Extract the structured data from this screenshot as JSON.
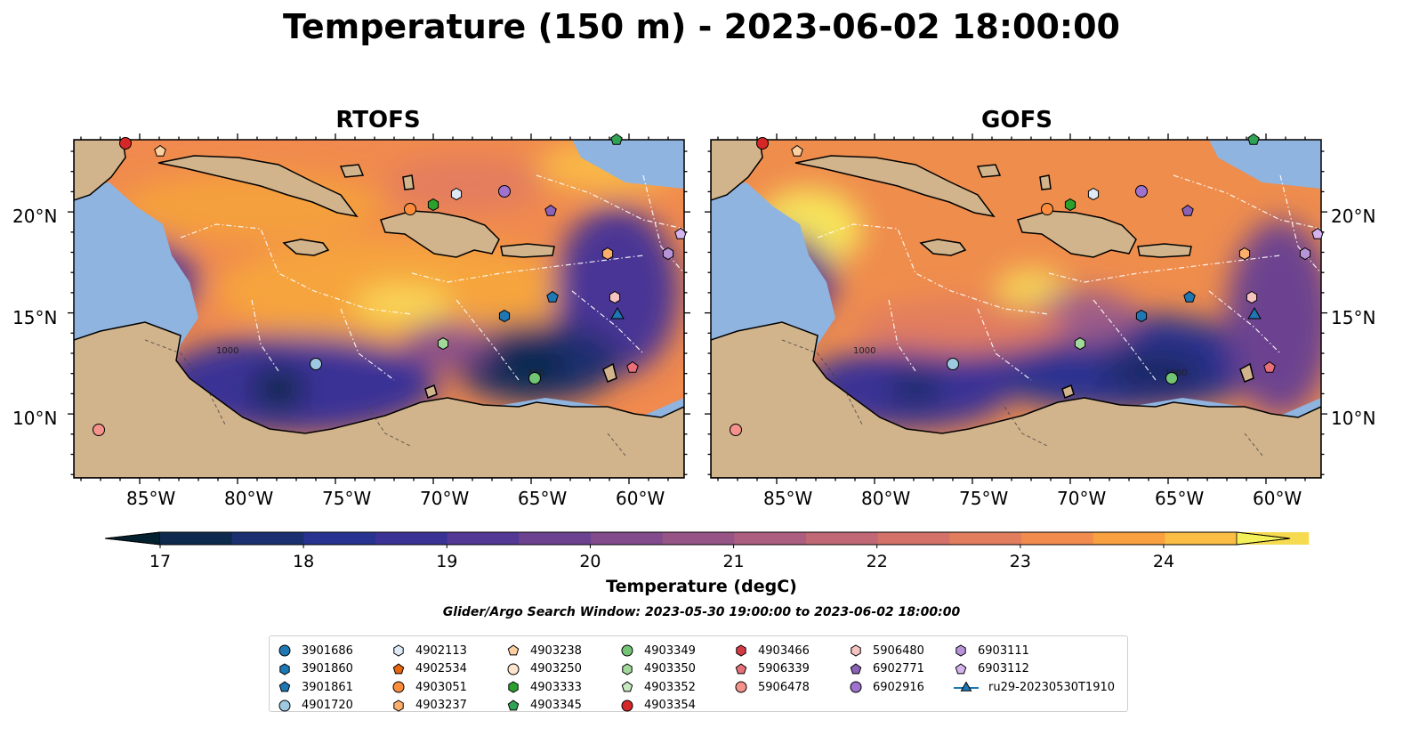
{
  "title": "Temperature (150 m) - 2023-06-02 18:00:00",
  "panels": [
    {
      "id": "rtofs",
      "title": "RTOFS"
    },
    {
      "id": "gofs",
      "title": "GOFS"
    }
  ],
  "axes": {
    "x_ticks": [
      "85°W",
      "80°W",
      "75°W",
      "70°W",
      "65°W",
      "60°W"
    ],
    "y_ticks": [
      "20°N",
      "15°N",
      "10°N"
    ]
  },
  "colorbar": {
    "label": "Temperature (degC)",
    "ticks": [
      "17",
      "18",
      "19",
      "20",
      "21",
      "22",
      "23",
      "24"
    ],
    "range": [
      16.75,
      24.75
    ],
    "colors": [
      "#03202f",
      "#0d2a4e",
      "#1b3070",
      "#283291",
      "#3b3296",
      "#543895",
      "#6c4290",
      "#824b8c",
      "#975486",
      "#ac5e80",
      "#c06876",
      "#d4726a",
      "#e27d5e",
      "#f18c4e",
      "#f9a040",
      "#fbbd44",
      "#f6da50",
      "#f4f05a"
    ]
  },
  "map_colors": {
    "land": "#d2b48c",
    "shelf": "#8fb4e0",
    "deep": "#041e2c"
  },
  "contour_labels": [
    "1000",
    "1000",
    "100",
    "1000"
  ],
  "search_window": "Glider/Argo Search Window: 2023-05-30 19:00:00 to 2023-06-02 18:00:00",
  "legend": {
    "items": [
      {
        "label": "3901686",
        "shape": "circle",
        "color": "#1f77b4"
      },
      {
        "label": "3901860",
        "shape": "hexagon",
        "color": "#1f77b4"
      },
      {
        "label": "3901861",
        "shape": "pentagon",
        "color": "#1f77b4"
      },
      {
        "label": "4901720",
        "shape": "circle",
        "color": "#9ecae1"
      },
      {
        "label": "4902113",
        "shape": "hexagon",
        "color": "#deebf7"
      },
      {
        "label": "4902534",
        "shape": "pentagon",
        "color": "#e6650d"
      },
      {
        "label": "4903051",
        "shape": "circle",
        "color": "#fd8d3c"
      },
      {
        "label": "4903237",
        "shape": "hexagon",
        "color": "#fdae6b"
      },
      {
        "label": "4903238",
        "shape": "pentagon",
        "color": "#fdd0a2"
      },
      {
        "label": "4903250",
        "shape": "circle",
        "color": "#fee6ce"
      },
      {
        "label": "4903333",
        "shape": "hexagon",
        "color": "#2ca02c"
      },
      {
        "label": "4903345",
        "shape": "pentagon",
        "color": "#31a354"
      },
      {
        "label": "4903349",
        "shape": "circle",
        "color": "#74c476"
      },
      {
        "label": "4903350",
        "shape": "hexagon",
        "color": "#a1d99b"
      },
      {
        "label": "4903352",
        "shape": "pentagon",
        "color": "#c7e9c0"
      },
      {
        "label": "4903354",
        "shape": "circle",
        "color": "#d62728"
      },
      {
        "label": "4903466",
        "shape": "hexagon",
        "color": "#d63a44"
      },
      {
        "label": "5906339",
        "shape": "pentagon",
        "color": "#e8707a"
      },
      {
        "label": "5906478",
        "shape": "circle",
        "color": "#f4928b"
      },
      {
        "label": "5906480",
        "shape": "hexagon",
        "color": "#f7c3c0"
      },
      {
        "label": "6902771",
        "shape": "pentagon",
        "color": "#8b62b8"
      },
      {
        "label": "6902916",
        "shape": "circle",
        "color": "#9f72cf"
      },
      {
        "label": "6903111",
        "shape": "hexagon",
        "color": "#b794d8"
      },
      {
        "label": "6903112",
        "shape": "pentagon",
        "color": "#d5b3ee"
      },
      {
        "label": "ru29-20230530T1910",
        "shape": "triangle-line",
        "color": "#1f77b4"
      }
    ]
  }
}
